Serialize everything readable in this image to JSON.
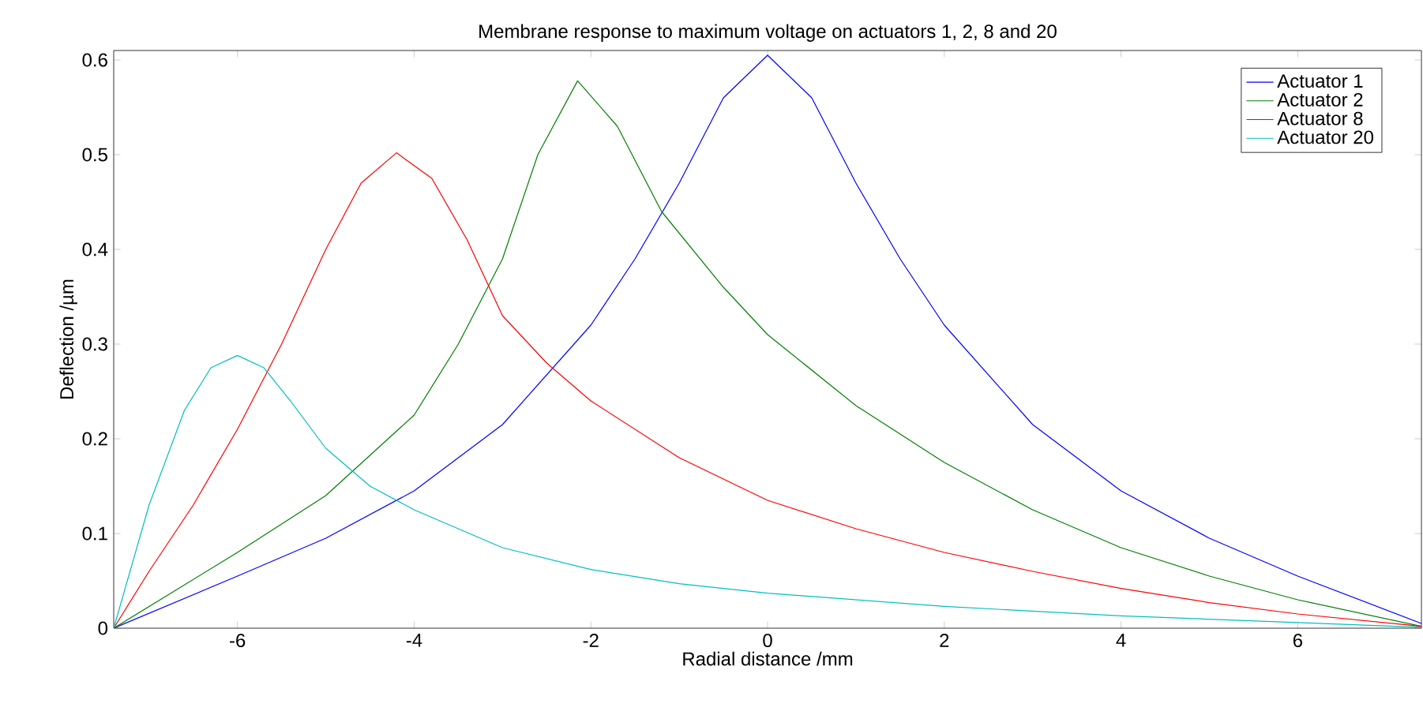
{
  "chart_data": {
    "type": "line",
    "title": "Membrane response to maximum voltage on actuators 1, 2, 8 and 20",
    "xlabel": "Radial distance /mm",
    "ylabel": "Deflection /µm",
    "xlim": [
      -7.4,
      7.4
    ],
    "ylim": [
      0,
      0.61
    ],
    "xticks": [
      -6,
      -4,
      -2,
      0,
      2,
      4,
      6
    ],
    "yticks": [
      0,
      0.1,
      0.2,
      0.3,
      0.4,
      0.5,
      0.6
    ],
    "grid": false,
    "legend": "top right",
    "marker": "none",
    "line_style": "solid",
    "series": [
      {
        "name": "Actuator 1",
        "color": "#0000ff",
        "x": [
          -7.4,
          -6,
          -5,
          -4,
          -3,
          -2,
          -1.5,
          -1,
          -0.5,
          0,
          0.5,
          1,
          1.5,
          2,
          3,
          4,
          5,
          6,
          7.4
        ],
        "values": [
          0,
          0.055,
          0.095,
          0.145,
          0.215,
          0.32,
          0.39,
          0.47,
          0.56,
          0.605,
          0.56,
          0.47,
          0.39,
          0.32,
          0.215,
          0.145,
          0.095,
          0.055,
          0.005
        ]
      },
      {
        "name": "Actuator 2",
        "color": "#008000",
        "x": [
          -7.4,
          -6,
          -5,
          -4,
          -3.5,
          -3,
          -2.6,
          -2.15,
          -1.7,
          -1.2,
          -0.5,
          0,
          1,
          2,
          3,
          4,
          5,
          6,
          7.4
        ],
        "values": [
          0,
          0.08,
          0.14,
          0.225,
          0.3,
          0.39,
          0.5,
          0.578,
          0.53,
          0.44,
          0.36,
          0.31,
          0.235,
          0.175,
          0.125,
          0.085,
          0.055,
          0.03,
          0.002
        ]
      },
      {
        "name": "Actuator 8",
        "color": "#ff0000",
        "x": [
          -7.4,
          -7,
          -6.5,
          -6,
          -5.5,
          -5,
          -4.6,
          -4.2,
          -3.8,
          -3.4,
          -3,
          -2.5,
          -2,
          -1,
          0,
          1,
          2,
          3,
          4,
          5,
          6,
          7.4
        ],
        "values": [
          0,
          0.06,
          0.13,
          0.21,
          0.3,
          0.4,
          0.47,
          0.502,
          0.475,
          0.41,
          0.33,
          0.28,
          0.24,
          0.18,
          0.135,
          0.105,
          0.08,
          0.06,
          0.042,
          0.027,
          0.015,
          0.002
        ]
      },
      {
        "name": "Actuator 20",
        "color": "#00bfbf",
        "x": [
          -7.4,
          -7,
          -6.6,
          -6.3,
          -6,
          -5.7,
          -5.4,
          -5,
          -4.5,
          -4,
          -3,
          -2,
          -1,
          0,
          2,
          4,
          6,
          7.4
        ],
        "values": [
          0,
          0.13,
          0.23,
          0.275,
          0.288,
          0.275,
          0.24,
          0.19,
          0.15,
          0.125,
          0.085,
          0.062,
          0.047,
          0.037,
          0.023,
          0.013,
          0.006,
          0.001
        ]
      }
    ]
  }
}
